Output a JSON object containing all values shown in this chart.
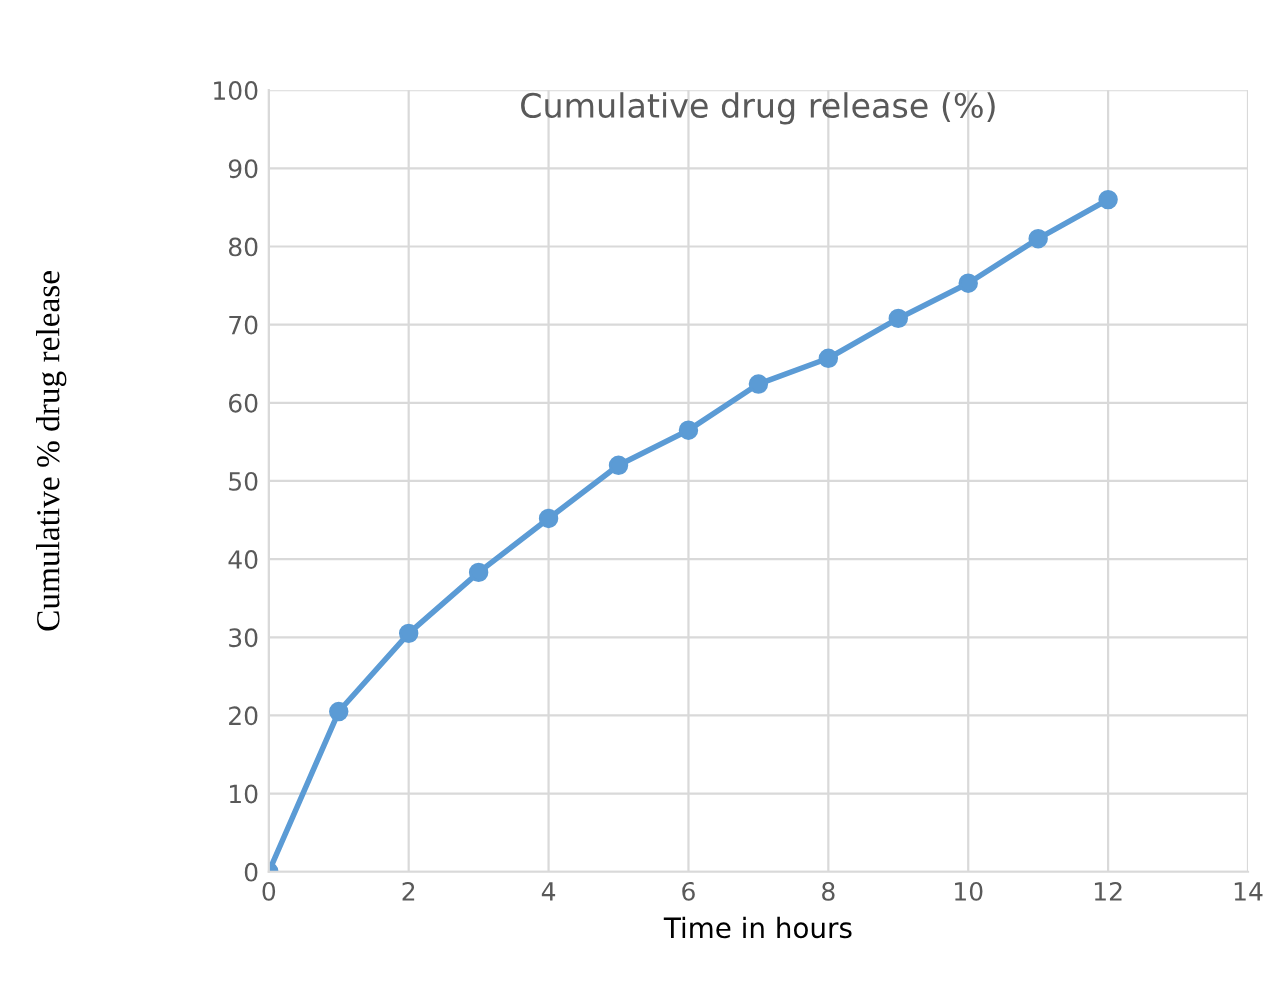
{
  "chart_data": {
    "type": "line",
    "title": "Cumulative drug release (%)",
    "xlabel": "Time in hours",
    "ylabel": "Cumulative % drug release",
    "x": [
      0,
      1,
      2,
      3,
      4,
      5,
      6,
      7,
      8,
      9,
      10,
      11,
      12
    ],
    "series": [
      {
        "color": "#5b9bd5",
        "values": [
          0,
          20.5,
          30.5,
          38.3,
          45.2,
          52,
          56.5,
          62.4,
          65.7,
          70.8,
          75.3,
          81,
          86
        ]
      }
    ],
    "xlim": [
      0,
      14
    ],
    "xticks": [
      0,
      2,
      4,
      6,
      8,
      10,
      12,
      14
    ],
    "ylim": [
      0,
      100
    ],
    "yticks": [
      0,
      10,
      20,
      30,
      40,
      50,
      60,
      70,
      80,
      90,
      100
    ],
    "grid": true,
    "marker": "circle",
    "line_style": "solid"
  }
}
